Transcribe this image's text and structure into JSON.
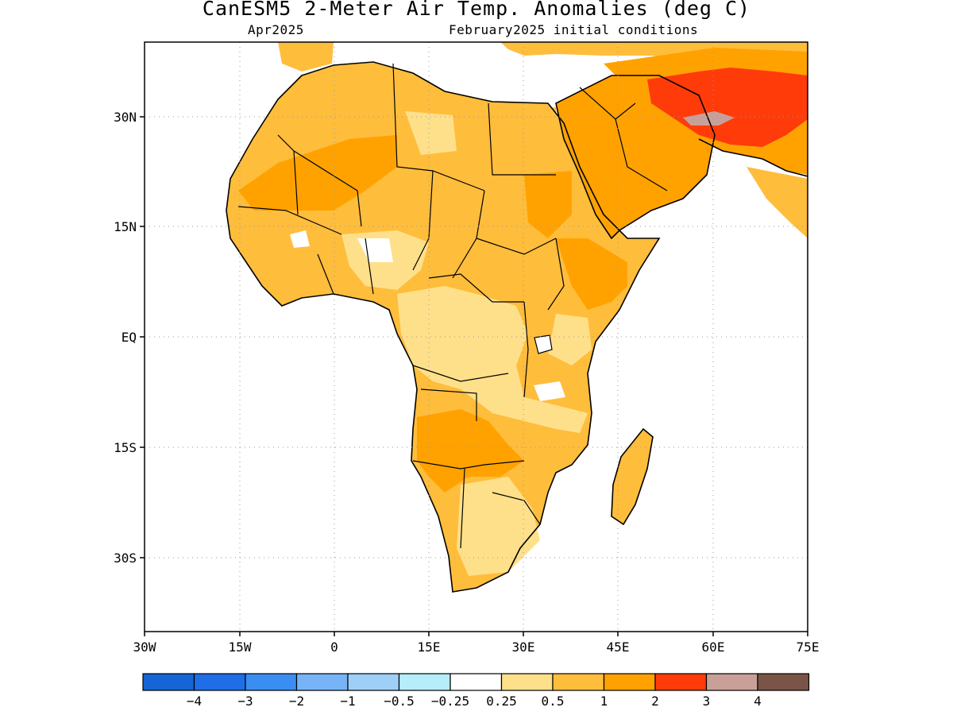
{
  "title": "CanESM5 2-Meter Air Temp. Anomalies (deg C)",
  "subtitle_left": "Apr2025",
  "subtitle_right": "February2025 initial conditions",
  "lat_labels": [
    "30N",
    "15N",
    "EQ",
    "15S",
    "30S"
  ],
  "lon_labels": [
    "30W",
    "15W",
    "0",
    "15E",
    "30E",
    "45E",
    "60E",
    "75E"
  ],
  "colorbar": {
    "colors": [
      "#1565d6",
      "#1f6ee8",
      "#3a8ef2",
      "#76b4f7",
      "#9ed0f7",
      "#b5eef8",
      "#ffffff",
      "#ffe08a",
      "#ffbd3c",
      "#ffa200",
      "#ff3b0a",
      "#c9a099",
      "#7a5446"
    ],
    "labels": [
      "-4",
      "-3",
      "-2",
      "-1",
      "-0.5",
      "-0.25",
      "0.25",
      "0.5",
      "1",
      "2",
      "3",
      "4"
    ]
  },
  "legend_units": "deg C",
  "region": {
    "lon_range": [
      -30,
      75
    ],
    "lat_range": [
      -40,
      40
    ]
  }
}
